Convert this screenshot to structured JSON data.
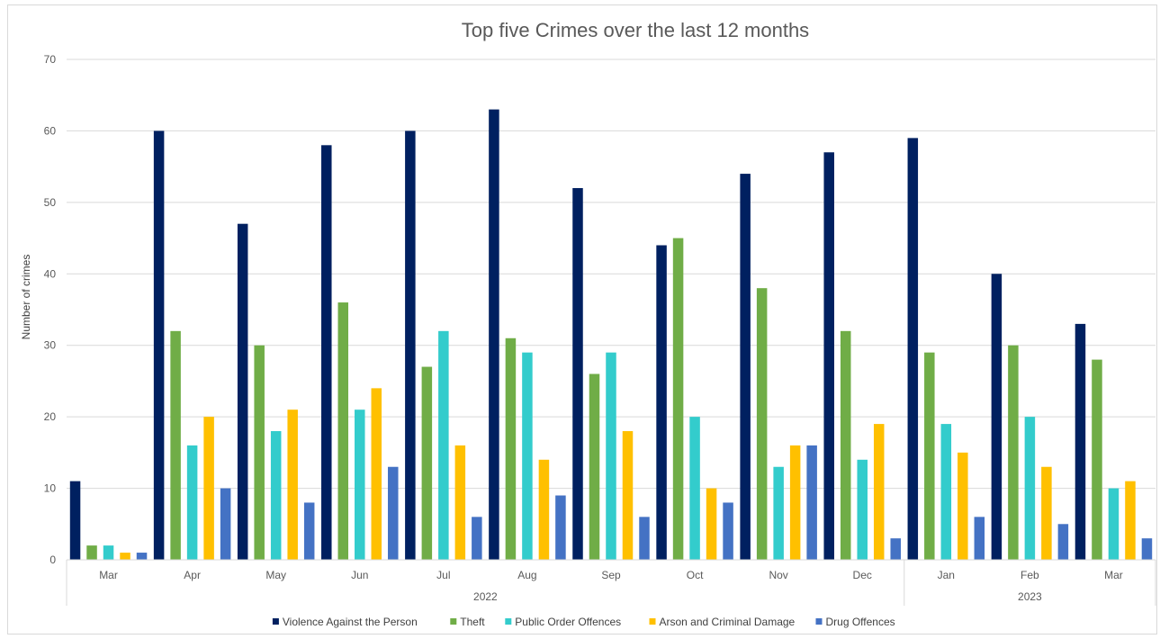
{
  "chart_data": {
    "type": "bar",
    "title": "Top five Crimes over the last 12 months",
    "xlabel": "",
    "ylabel": "Number of crimes",
    "ylim": [
      0,
      70
    ],
    "yticks": [
      0,
      10,
      20,
      30,
      40,
      50,
      60,
      70
    ],
    "grid": true,
    "legend_position": "bottom",
    "categories": [
      "Mar",
      "Apr",
      "May",
      "Jun",
      "Jul",
      "Aug",
      "Sep",
      "Oct",
      "Nov",
      "Dec",
      "Jan",
      "Feb",
      "Mar"
    ],
    "groups": [
      {
        "label": "2022",
        "count": 10
      },
      {
        "label": "2023",
        "count": 3
      }
    ],
    "series": [
      {
        "name": "Violence Against the Person",
        "color": "#002060",
        "values": [
          11,
          60,
          47,
          58,
          60,
          63,
          52,
          44,
          54,
          57,
          59,
          40,
          33
        ]
      },
      {
        "name": "Theft",
        "color": "#70ad47",
        "values": [
          2,
          32,
          30,
          36,
          27,
          31,
          26,
          45,
          38,
          32,
          29,
          30,
          28
        ]
      },
      {
        "name": "Public Order Offences",
        "color": "#33cccc",
        "values": [
          2,
          16,
          18,
          21,
          32,
          29,
          29,
          20,
          13,
          14,
          19,
          20,
          10
        ]
      },
      {
        "name": "Arson and Criminal Damage",
        "color": "#ffc000",
        "values": [
          1,
          20,
          21,
          24,
          16,
          14,
          18,
          10,
          16,
          19,
          15,
          13,
          11
        ]
      },
      {
        "name": "Drug Offences",
        "color": "#4472c4",
        "values": [
          1,
          10,
          8,
          13,
          6,
          9,
          6,
          8,
          16,
          3,
          6,
          5,
          3
        ]
      }
    ]
  }
}
